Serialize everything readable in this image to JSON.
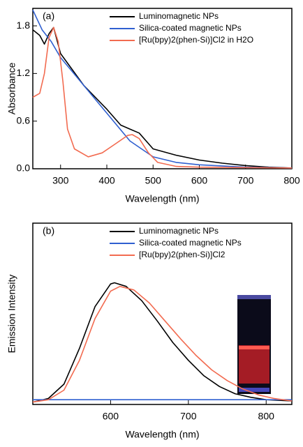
{
  "chart_data": [
    {
      "type": "line",
      "label": "(a)",
      "x_label": "Wavelength (nm)",
      "y_label": "Absorbance",
      "xlim": [
        240,
        800
      ],
      "ylim": [
        0,
        2.02
      ],
      "legend": "upper right",
      "xticks": [
        300,
        400,
        500,
        600,
        700,
        800
      ],
      "yticks": [
        {
          "value": 0,
          "label": "0.0"
        },
        0.6,
        1.2,
        1.8
      ],
      "series": [
        {
          "name": "Luminomagnetic NPs",
          "color": "#000000",
          "x": [
            240,
            255,
            265,
            275,
            285,
            300,
            350,
            400,
            430,
            450,
            470,
            500,
            550,
            600,
            650,
            700,
            750,
            800
          ],
          "values": [
            1.75,
            1.68,
            1.57,
            1.7,
            1.78,
            1.45,
            1.05,
            0.75,
            0.55,
            0.5,
            0.45,
            0.25,
            0.17,
            0.11,
            0.07,
            0.04,
            0.02,
            0.01
          ]
        },
        {
          "name": "Silica-coated magnetic NPs",
          "color": "#2f5fd0",
          "x": [
            240,
            260,
            280,
            300,
            350,
            400,
            450,
            500,
            550,
            600,
            700,
            800
          ],
          "values": [
            2.0,
            1.75,
            1.6,
            1.4,
            1.05,
            0.7,
            0.35,
            0.15,
            0.08,
            0.05,
            0.02,
            0.01
          ]
        },
        {
          "name": "[Ru(bpy)2(phen-Si)]Cl2 in H2O",
          "color": "#f26b50",
          "x": [
            240,
            255,
            265,
            275,
            285,
            295,
            305,
            315,
            330,
            360,
            390,
            420,
            445,
            455,
            470,
            490,
            510,
            550,
            600,
            800
          ],
          "values": [
            0.9,
            0.95,
            1.2,
            1.65,
            1.78,
            1.6,
            1.1,
            0.5,
            0.25,
            0.15,
            0.2,
            0.32,
            0.42,
            0.43,
            0.38,
            0.2,
            0.08,
            0.03,
            0.02,
            0.01
          ]
        }
      ]
    },
    {
      "type": "line",
      "label": "(b)",
      "x_label": "Wavelength (nm)",
      "y_label": "Emission Intensity",
      "xlim": [
        500,
        833
      ],
      "ylim": [
        -0.02,
        1.5
      ],
      "legend": "upper right",
      "xticks": [
        600,
        700,
        800
      ],
      "series": [
        {
          "name": "Luminomagnetic NPs",
          "color": "#000000",
          "x": [
            500,
            520,
            540,
            560,
            580,
            600,
            605,
            620,
            640,
            660,
            680,
            700,
            720,
            740,
            760,
            780,
            800,
            833
          ],
          "values": [
            0.0,
            0.03,
            0.15,
            0.45,
            0.8,
            0.99,
            1.0,
            0.97,
            0.85,
            0.68,
            0.5,
            0.35,
            0.22,
            0.13,
            0.07,
            0.04,
            0.02,
            0.01
          ]
        },
        {
          "name": "Silica-coated magnetic NPs",
          "color": "#2f5fd0",
          "x": [
            500,
            600,
            700,
            833
          ],
          "values": [
            0.02,
            0.02,
            0.02,
            0.02
          ]
        },
        {
          "name": "[Ru(bpy)2(phen-Si)]Cl2",
          "color": "#f26b50",
          "x": [
            500,
            520,
            540,
            560,
            580,
            600,
            612,
            630,
            650,
            670,
            690,
            710,
            730,
            750,
            770,
            790,
            810,
            833
          ],
          "values": [
            0.0,
            0.02,
            0.1,
            0.35,
            0.7,
            0.93,
            0.97,
            0.94,
            0.83,
            0.68,
            0.53,
            0.39,
            0.27,
            0.18,
            0.11,
            0.06,
            0.03,
            0.01
          ]
        }
      ]
    }
  ]
}
